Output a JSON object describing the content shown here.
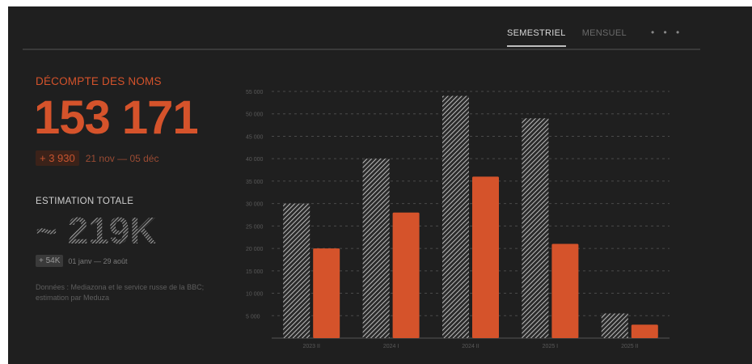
{
  "tabs": [
    {
      "label": "SEMESTRIEL",
      "active": true
    },
    {
      "label": "MENSUEL",
      "active": false
    }
  ],
  "more_label": "• • •",
  "names_count": {
    "title": "DÉCOMPTE DES NOMS",
    "value": "153 171",
    "delta": "+ 3 930",
    "delta_range": "21 nov — 05 déc"
  },
  "estimate": {
    "title": "ESTIMATION TOTALE",
    "value": "~ 219K",
    "delta": "+ 54K",
    "delta_range": "01 janv — 29 août"
  },
  "source": "Données : Mediazona et le service russe de la BBC; estimation par Meduza",
  "colors": {
    "background": "#1f1f1f",
    "accent": "#d5532b",
    "hatch": "#bdbdbd",
    "grid": "#4a4a4a"
  },
  "chart_data": {
    "type": "bar",
    "categories": [
      "2023 II",
      "2024 I",
      "2024 II",
      "2025 I",
      "2025 II"
    ],
    "series": [
      {
        "values": [
          30000,
          40000,
          54000,
          49000,
          5500
        ]
      },
      {
        "values": [
          20000,
          28000,
          36000,
          21000,
          3000
        ]
      }
    ],
    "ylim": [
      0,
      55000
    ],
    "yticks": [
      "55 000",
      "50 000",
      "45 000",
      "40 000",
      "35 000",
      "30 000",
      "25 000",
      "20 000",
      "15 000",
      "10 000",
      "5 000"
    ],
    "grid": true
  }
}
